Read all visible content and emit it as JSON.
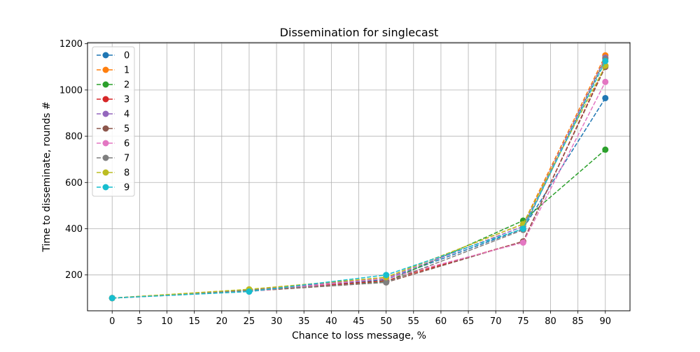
{
  "chart_data": {
    "type": "line",
    "title": "Dissemination for singlecast",
    "xlabel": "Chance to loss message, %",
    "ylabel": "Time to disseminate, rounds #",
    "x": [
      0,
      25,
      50,
      75,
      90
    ],
    "xlim": [
      -4.5,
      94.5
    ],
    "ylim": [
      45,
      1205
    ],
    "xticks": [
      0,
      5,
      10,
      15,
      20,
      25,
      30,
      35,
      40,
      45,
      50,
      55,
      60,
      65,
      70,
      75,
      80,
      85,
      90
    ],
    "yticks": [
      200,
      400,
      600,
      800,
      1000,
      1200
    ],
    "grid": true,
    "legend_position": "top-left",
    "line_style": "dashed",
    "marker": "circle",
    "series": [
      {
        "name": "0",
        "color": "#1f77b4",
        "values": [
          100,
          130,
          180,
          400,
          965
        ]
      },
      {
        "name": "1",
        "color": "#ff7f0e",
        "values": [
          100,
          135,
          190,
          420,
          1150
        ]
      },
      {
        "name": "2",
        "color": "#2ca02c",
        "values": [
          100,
          135,
          170,
          435,
          742
        ]
      },
      {
        "name": "3",
        "color": "#d62728",
        "values": [
          100,
          132,
          175,
          345,
          1105
        ]
      },
      {
        "name": "4",
        "color": "#9467bd",
        "values": [
          100,
          133,
          185,
          410,
          1140
        ]
      },
      {
        "name": "5",
        "color": "#8c564b",
        "values": [
          100,
          130,
          168,
          345,
          1100
        ]
      },
      {
        "name": "6",
        "color": "#e377c2",
        "values": [
          100,
          128,
          185,
          340,
          1035
        ]
      },
      {
        "name": "7",
        "color": "#7f7f7f",
        "values": [
          100,
          133,
          168,
          395,
          1135
        ]
      },
      {
        "name": "8",
        "color": "#bcbd22",
        "values": [
          100,
          138,
          190,
          420,
          1105
        ]
      },
      {
        "name": "9",
        "color": "#17becf",
        "values": [
          100,
          128,
          200,
          400,
          1125
        ]
      }
    ]
  }
}
